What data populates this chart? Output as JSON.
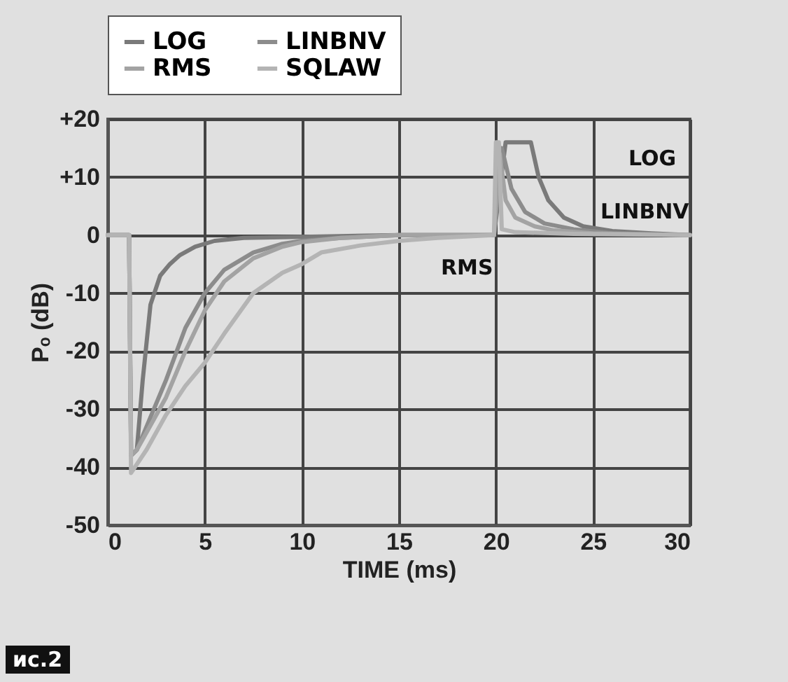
{
  "chart_data": {
    "type": "line",
    "xlabel": "TIME (ms)",
    "ylabel": "Pₒ (dB)",
    "xlim": [
      0,
      30
    ],
    "xticks": [
      0,
      5,
      10,
      15,
      20,
      25,
      30
    ],
    "ylim": [
      -50,
      20
    ],
    "yticks": [
      -50,
      -40,
      -30,
      -20,
      -10,
      0,
      {
        "value": 10,
        "label": "+10"
      },
      {
        "value": 20,
        "label": "+20"
      }
    ],
    "grid": true,
    "legend": "top",
    "marker": "none",
    "line_style": "solid",
    "annotations": [
      "LOG",
      "LINBNV",
      "RMS",
      "ис.2"
    ],
    "series": [
      {
        "name": "LOG",
        "color": "#7a7a7a",
        "x": [
          0,
          1.1,
          1.2,
          1.5,
          1.8,
          2.2,
          2.7,
          3.2,
          3.7,
          4.5,
          5.5,
          7,
          10,
          15,
          19.9,
          20.5,
          21.8,
          22.2,
          22.7,
          23.5,
          24.5,
          26,
          28,
          30
        ],
        "values": [
          0,
          0,
          -38,
          -37,
          -25,
          -12,
          -7,
          -5,
          -3.5,
          -2,
          -1,
          -0.5,
          -0.3,
          0,
          0,
          16,
          16,
          10,
          6,
          3,
          1.5,
          0.7,
          0.3,
          0
        ]
      },
      {
        "name": "LINBNV",
        "color": "#8c8c8c",
        "x": [
          0,
          1.1,
          1.2,
          1.5,
          2,
          3,
          4,
          5,
          6,
          7.5,
          9,
          10,
          12,
          15,
          19.9,
          20.3,
          20.8,
          21.5,
          22.5,
          24,
          26,
          30
        ],
        "values": [
          0,
          0,
          -38,
          -37,
          -33,
          -25,
          -16,
          -10,
          -6,
          -3,
          -1.5,
          -1,
          -0.5,
          0,
          0,
          15,
          8,
          4,
          2,
          1,
          0.3,
          0
        ]
      },
      {
        "name": "RMS",
        "color": "#a3a3a3",
        "x": [
          0,
          1.1,
          1.2,
          1.5,
          2,
          3,
          4,
          5,
          6,
          7.5,
          9,
          10,
          12,
          15,
          19.9,
          20.2,
          20.5,
          21,
          22,
          23,
          25,
          30
        ],
        "values": [
          0,
          0,
          -38,
          -37,
          -34,
          -28,
          -20,
          -13,
          -8,
          -4,
          -2,
          -1.2,
          -0.5,
          0,
          0,
          14,
          6,
          3,
          1.5,
          0.8,
          0.3,
          0
        ]
      },
      {
        "name": "SQLAW",
        "color": "#b4b4b4",
        "x": [
          0,
          1.1,
          1.2,
          2,
          3,
          4,
          5,
          6,
          7.5,
          9,
          10,
          11,
          13,
          15,
          17,
          19.9,
          20,
          20.15,
          20.3,
          21,
          24,
          30
        ],
        "values": [
          0,
          0,
          -41,
          -37,
          -31,
          -26,
          -22,
          -17,
          -10,
          -6.5,
          -5,
          -3,
          -1.8,
          -1,
          -0.5,
          0,
          16,
          16,
          1,
          0.5,
          0.2,
          0
        ]
      }
    ]
  }
}
